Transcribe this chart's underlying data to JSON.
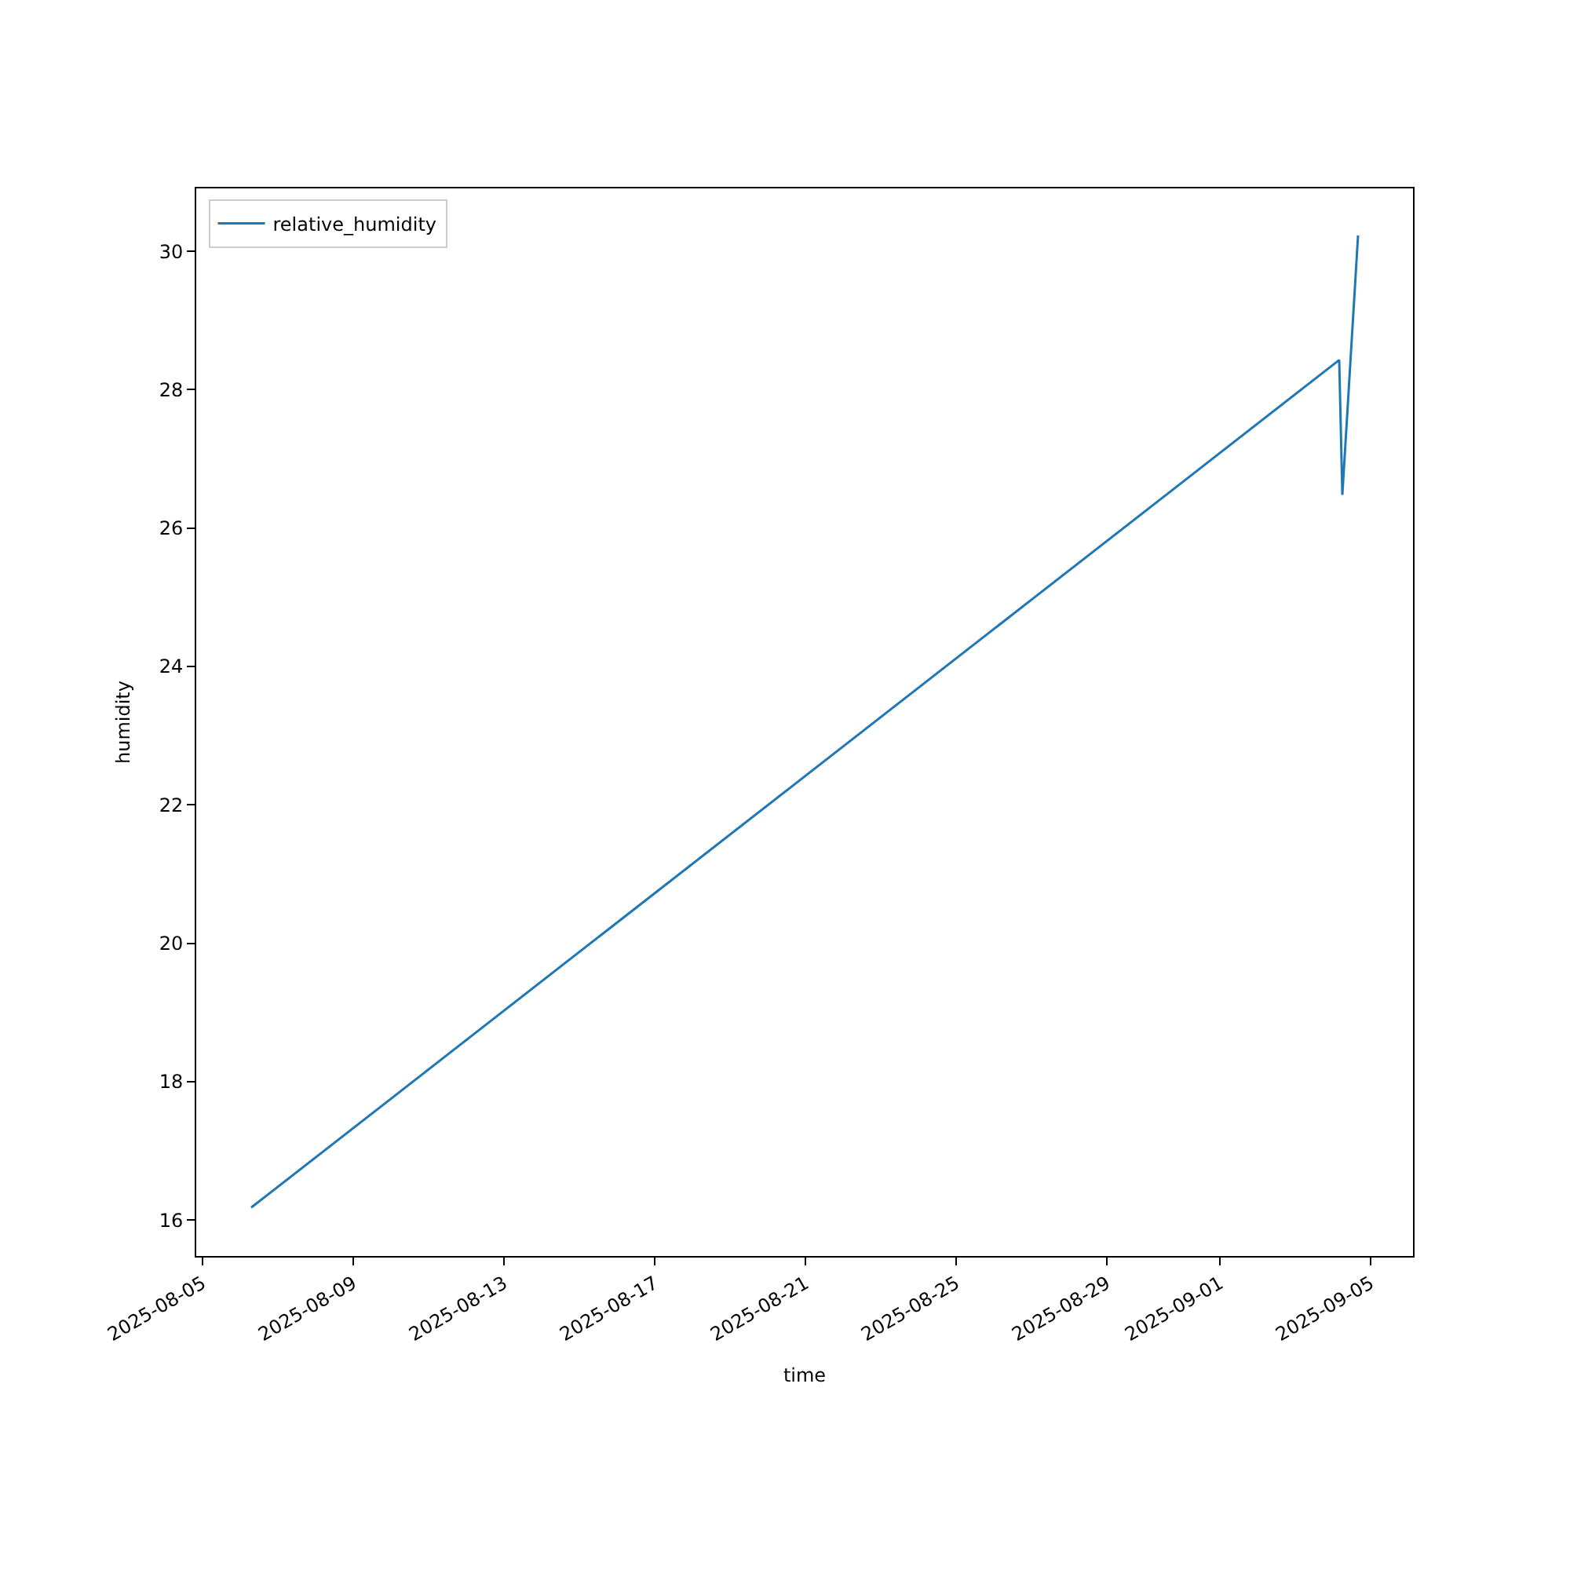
{
  "chart_data": {
    "type": "line",
    "xlabel": "time",
    "ylabel": "humidity",
    "x": [
      "2025-08-06T07:00",
      "2025-09-04T04:00",
      "2025-09-04T06:00",
      "2025-09-04T16:00"
    ],
    "series": [
      {
        "name": "relative_humidity",
        "color": "#1f77b4",
        "values": [
          16.18,
          28.43,
          26.48,
          30.23
        ]
      }
    ],
    "xlim": [
      "2025-08-04T20:00",
      "2025-09-06T03:00"
    ],
    "xticks": [
      "2025-08-05",
      "2025-08-09",
      "2025-08-13",
      "2025-08-17",
      "2025-08-21",
      "2025-08-25",
      "2025-08-29",
      "2025-09-01",
      "2025-09-05"
    ],
    "ylim": [
      15.48,
      30.91
    ],
    "yticks": [
      16,
      18,
      20,
      22,
      24,
      26,
      28,
      30
    ],
    "legend": "top left",
    "marker": "none",
    "line_style": "solid"
  }
}
